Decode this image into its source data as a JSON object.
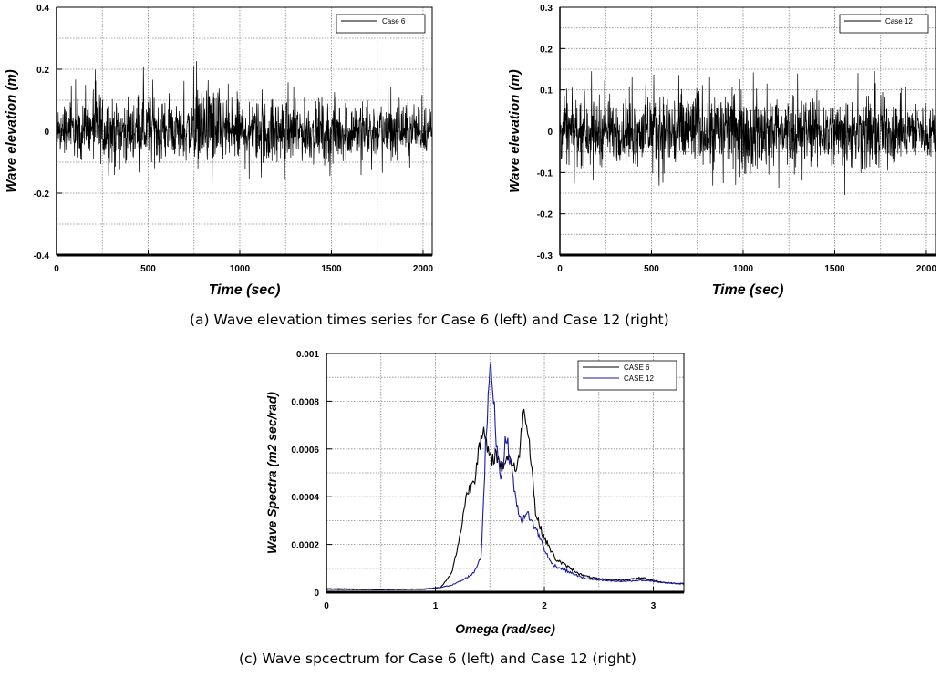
{
  "captions": {
    "a": "(a) Wave elevation times series for Case 6 (left) and Case 12 (right)",
    "c": "(c) Wave spcectrum for Case 6 (left) and Case 12 (right)"
  },
  "colors": {
    "case6": "#000000",
    "case12": "#1a1aa8",
    "grid": "#888888"
  },
  "chart_data": [
    {
      "type": "line",
      "xlabel": "Time (sec)",
      "ylabel": "Wave elevation (m)",
      "xlim": [
        0,
        2050
      ],
      "ylim": [
        -0.4,
        0.4
      ],
      "xticks": [
        "0",
        "500",
        "1000",
        "1500",
        "2000"
      ],
      "yticks": [
        "-0.4",
        "-0.2",
        "0",
        "0.2",
        "0.4"
      ],
      "grid": true,
      "legend": "top-right",
      "series": [
        {
          "name": "Case 6",
          "color": "#000000",
          "x": [
            0,
            120,
            165,
            280,
            300,
            400,
            460,
            530,
            560,
            640,
            700,
            805,
            1000,
            1050,
            1200,
            1300,
            1500,
            1720,
            2050
          ],
          "y_max": [
            0.15,
            0.18,
            0.2,
            0.22,
            0.16,
            0.15,
            0.22,
            0.24,
            0.2,
            0.16,
            0.18,
            0.28,
            0.18,
            0.16,
            0.18,
            0.15,
            0.18,
            0.17,
            0.15
          ],
          "y_min": [
            -0.13,
            -0.14,
            -0.15,
            -0.18,
            -0.22,
            -0.16,
            -0.19,
            -0.16,
            -0.17,
            -0.14,
            -0.16,
            -0.18,
            -0.2,
            -0.18,
            -0.19,
            -0.16,
            -0.18,
            -0.15,
            -0.14
          ]
        }
      ]
    },
    {
      "type": "line",
      "xlabel": "Time (sec)",
      "ylabel": "Wave elevation (m)",
      "xlim": [
        0,
        2050
      ],
      "ylim": [
        -0.3,
        0.3
      ],
      "xticks": [
        "0",
        "500",
        "1000",
        "1500",
        "2000"
      ],
      "yticks": [
        "-0.3",
        "-0.2",
        "-0.1",
        "0",
        "0.1",
        "0.2",
        "0.3"
      ],
      "grid": true,
      "legend": "top-right",
      "series": [
        {
          "name": "Case 12",
          "color": "#000000",
          "x": [
            0,
            140,
            300,
            500,
            650,
            760,
            900,
            1000,
            1100,
            1300,
            1480,
            1700,
            1850,
            2050
          ],
          "y_max": [
            0.12,
            0.15,
            0.14,
            0.16,
            0.17,
            0.19,
            0.18,
            0.14,
            0.15,
            0.16,
            0.13,
            0.17,
            0.14,
            0.12
          ],
          "y_min": [
            -0.12,
            -0.14,
            -0.13,
            -0.15,
            -0.22,
            -0.13,
            -0.14,
            -0.19,
            -0.17,
            -0.14,
            -0.16,
            -0.18,
            -0.13,
            -0.12
          ]
        }
      ]
    },
    {
      "type": "line",
      "xlabel": "Omega (rad/sec)",
      "ylabel": "Wave Spectra (m2  sec/rad)",
      "xlim": [
        0,
        3.28
      ],
      "ylim": [
        0,
        0.001
      ],
      "xticks": [
        "0",
        "1",
        "2",
        "3"
      ],
      "yticks": [
        "0",
        "0.0002",
        "0.0004",
        "0.0006",
        "0.0008",
        "0.001"
      ],
      "grid": true,
      "legend": "top-right",
      "series": [
        {
          "name": "CASE 6",
          "color": "#000000",
          "x": [
            0,
            0.5,
            0.9,
            1.05,
            1.15,
            1.22,
            1.28,
            1.32,
            1.36,
            1.4,
            1.45,
            1.5,
            1.56,
            1.6,
            1.66,
            1.7,
            1.75,
            1.8,
            1.83,
            1.87,
            1.92,
            1.97,
            2.02,
            2.1,
            2.2,
            2.35,
            2.5,
            2.7,
            2.9,
            3.1,
            3.28
          ],
          "y": [
            1.2e-05,
            1e-05,
            1.2e-05,
            2e-05,
            8e-05,
            0.00022,
            0.0004,
            0.00044,
            0.00048,
            0.00062,
            0.00066,
            0.00055,
            0.00058,
            0.00052,
            0.00057,
            0.00055,
            0.0005,
            0.00073,
            0.00075,
            0.0006,
            0.00033,
            0.00026,
            0.00021,
            0.00014,
            0.00011,
            7e-05,
            5.5e-05,
            5e-05,
            6e-05,
            4e-05,
            3.5e-05
          ]
        },
        {
          "name": "CASE 12",
          "color": "#1a1aa8",
          "x": [
            0,
            0.5,
            0.9,
            1.05,
            1.15,
            1.25,
            1.35,
            1.42,
            1.46,
            1.5,
            1.53,
            1.56,
            1.6,
            1.65,
            1.7,
            1.75,
            1.8,
            1.85,
            1.9,
            1.95,
            2.0,
            2.05,
            2.1,
            2.2,
            2.35,
            2.5,
            2.7,
            2.9,
            3.1,
            3.28
          ],
          "y": [
            1.5e-05,
            1.2e-05,
            1.4e-05,
            2e-05,
            3e-05,
            5e-05,
            8e-05,
            0.00015,
            0.0006,
            0.00094,
            0.00085,
            0.00063,
            0.00048,
            0.00065,
            0.00052,
            0.00035,
            0.0003,
            0.00033,
            0.00028,
            0.00024,
            0.00018,
            0.00013,
            0.00011,
            9e-05,
            6e-05,
            5e-05,
            4.5e-05,
            5e-05,
            4e-05,
            3.5e-05
          ]
        }
      ]
    }
  ]
}
